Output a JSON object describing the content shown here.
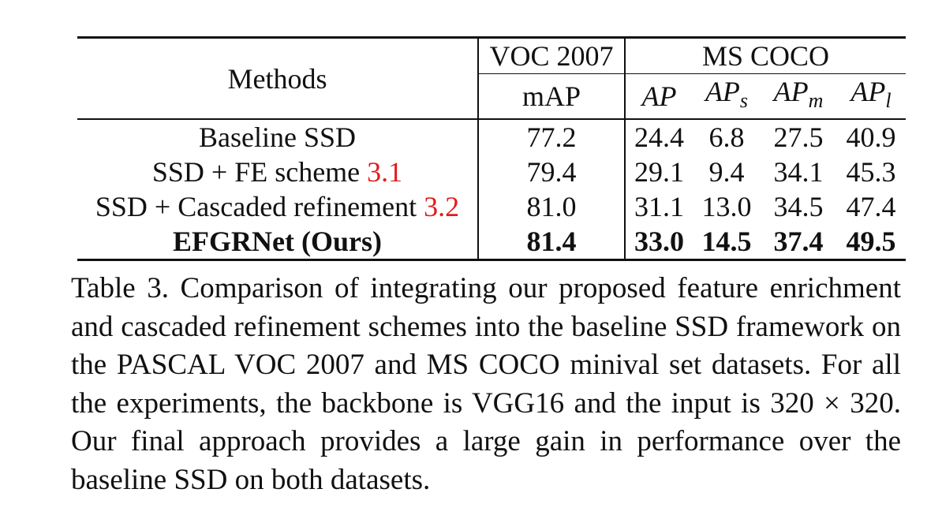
{
  "table": {
    "header": {
      "methods": "Methods",
      "voc_group": "VOC 2007",
      "coco_group": "MS COCO",
      "voc_metric": "mAP",
      "coco_metrics": {
        "ap": "AP",
        "aps_main": "AP",
        "aps_sub": "s",
        "apm_main": "AP",
        "apm_sub": "m",
        "apl_main": "AP",
        "apl_sub": "l"
      }
    },
    "rows": [
      {
        "method": "Baseline SSD",
        "ref": "",
        "voc_map": "77.2",
        "ap": "24.4",
        "aps": "6.8",
        "apm": "27.5",
        "apl": "40.9"
      },
      {
        "method": "SSD + FE scheme ",
        "ref": "3.1",
        "voc_map": "79.4",
        "ap": "29.1",
        "aps": "9.4",
        "apm": "34.1",
        "apl": "45.3"
      },
      {
        "method": "SSD + Cascaded refinement ",
        "ref": "3.2",
        "voc_map": "81.0",
        "ap": "31.1",
        "aps": "13.0",
        "apm": "34.5",
        "apl": "47.4"
      },
      {
        "method": "EFGRNet (Ours)",
        "ref": "",
        "voc_map": "81.4",
        "ap": "33.0",
        "aps": "14.5",
        "apm": "37.4",
        "apl": "49.5"
      }
    ]
  },
  "caption": "Table 3. Comparison of integrating our proposed feature enrichment and cascaded refinement schemes into the baseline SSD framework on the PASCAL VOC 2007 and MS COCO minival set datasets. For all the experiments, the backbone is VGG16 and the input is 320 × 320. Our final approach provides a large gain in performance over the baseline SSD on both datasets.",
  "colors": {
    "text": "#111111",
    "reference": "#e31a1c"
  }
}
